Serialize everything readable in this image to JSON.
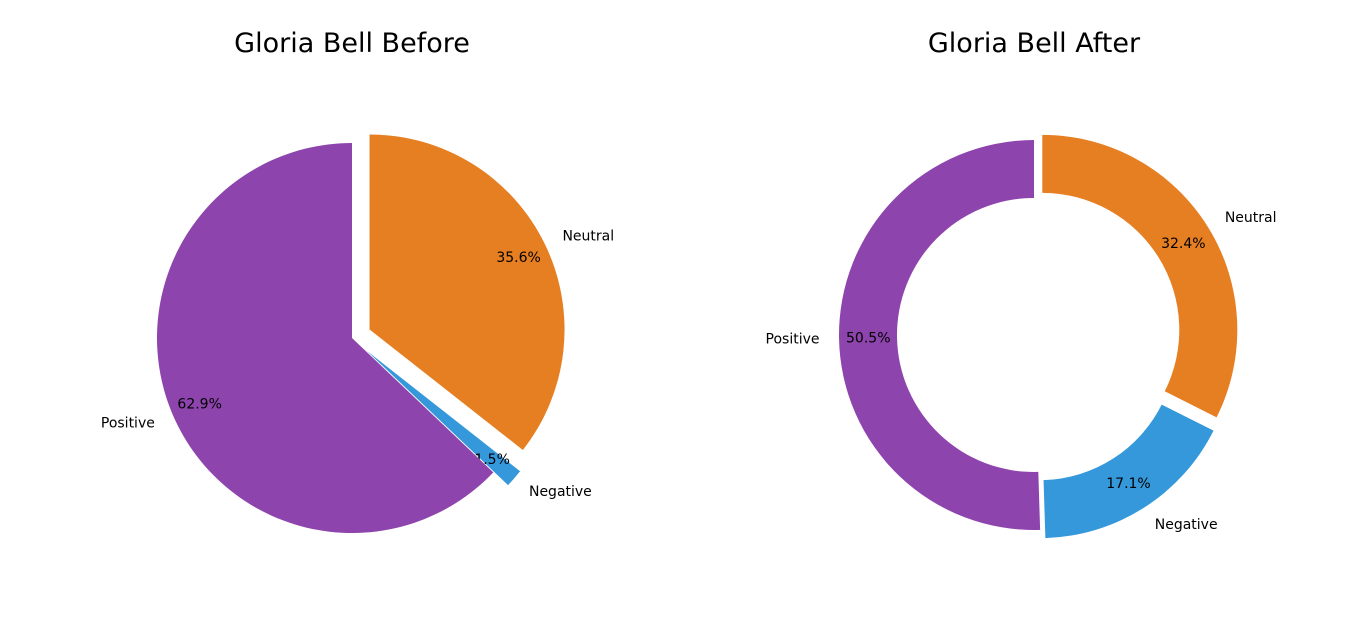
{
  "chart_data": [
    {
      "type": "pie",
      "title": "Gloria Bell Before",
      "slices": [
        {
          "label": "Neutral",
          "value": 35.6,
          "pct_label": "35.6%",
          "color": "#e67e22"
        },
        {
          "label": "Negative",
          "value": 1.5,
          "pct_label": "1.5%",
          "color": "#3498db"
        },
        {
          "label": "Positive",
          "value": 62.9,
          "pct_label": "62.9%",
          "color": "#8e44ad"
        }
      ]
    },
    {
      "type": "pie",
      "style": "donut",
      "title": "Gloria Bell After",
      "slices": [
        {
          "label": "Neutral",
          "value": 32.4,
          "pct_label": "32.4%",
          "color": "#e67e22"
        },
        {
          "label": "Negative",
          "value": 17.1,
          "pct_label": "17.1%",
          "color": "#3498db"
        },
        {
          "label": "Positive",
          "value": 50.5,
          "pct_label": "50.5%",
          "color": "#8e44ad"
        }
      ]
    }
  ]
}
